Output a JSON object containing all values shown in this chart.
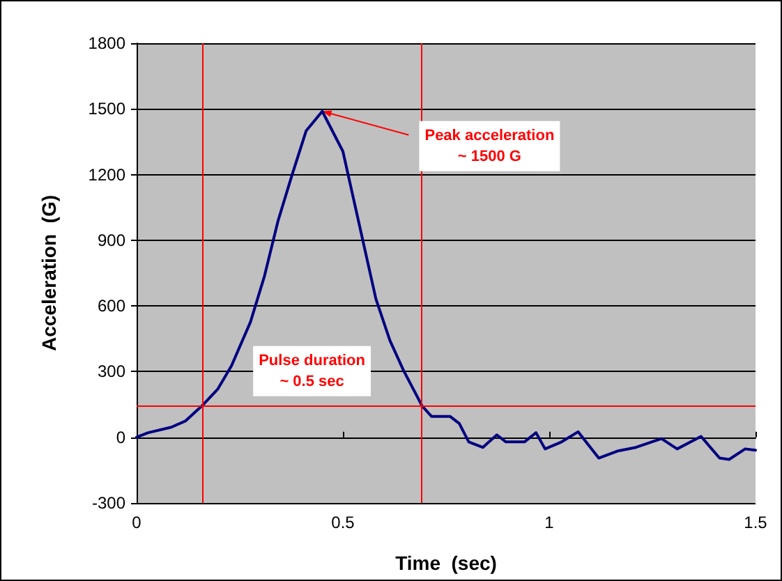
{
  "chart_data": {
    "type": "line",
    "xlabel": "Time  (sec)",
    "ylabel": "Acceleration  (G)",
    "xlim": [
      0,
      1.5
    ],
    "xticks": [
      0,
      0.5,
      1,
      1.5
    ],
    "ylim": [
      -300,
      1800
    ],
    "yticks": [
      -300,
      0,
      300,
      600,
      900,
      1200,
      1500,
      1800
    ],
    "grid": "y",
    "marker": "none",
    "line_style": "solid",
    "series": [
      {
        "color": "#000080",
        "x": [
          0,
          0.028,
          0.084,
          0.118,
          0.158,
          0.197,
          0.23,
          0.276,
          0.31,
          0.343,
          0.377,
          0.411,
          0.45,
          0.5,
          0.535,
          0.58,
          0.614,
          0.647,
          0.692,
          0.715,
          0.76,
          0.782,
          0.805,
          0.839,
          0.873,
          0.895,
          0.94,
          0.968,
          0.99,
          1.03,
          1.07,
          1.12,
          1.165,
          1.21,
          1.272,
          1.31,
          1.368,
          1.413,
          1.436,
          1.475,
          1.5
        ],
        "values": [
          0,
          21,
          46,
          74,
          143,
          221,
          327,
          527,
          737,
          990,
          1200,
          1400,
          1489,
          1306,
          1011,
          632,
          442,
          305,
          143,
          95,
          95,
          63,
          -21,
          -46,
          11,
          -21,
          -21,
          21,
          -53,
          -21,
          25,
          -95,
          -63,
          -46,
          -6,
          -53,
          4,
          -95,
          -101,
          -53,
          -59
        ]
      }
    ],
    "ref_lines": [
      {
        "axis": "x",
        "value": 0.158,
        "color": "#ff0000"
      },
      {
        "axis": "x",
        "value": 0.692,
        "color": "#ff0000"
      },
      {
        "axis": "y",
        "value": 143,
        "color": "#ff0000"
      }
    ],
    "annotations": [
      {
        "text": "Peak acceleration\n~ 1500 G",
        "x": 0.45,
        "y": 1489
      },
      {
        "text": "Pulse duration\n~ 0.5 sec",
        "x": 0.425,
        "y": 143
      }
    ]
  }
}
